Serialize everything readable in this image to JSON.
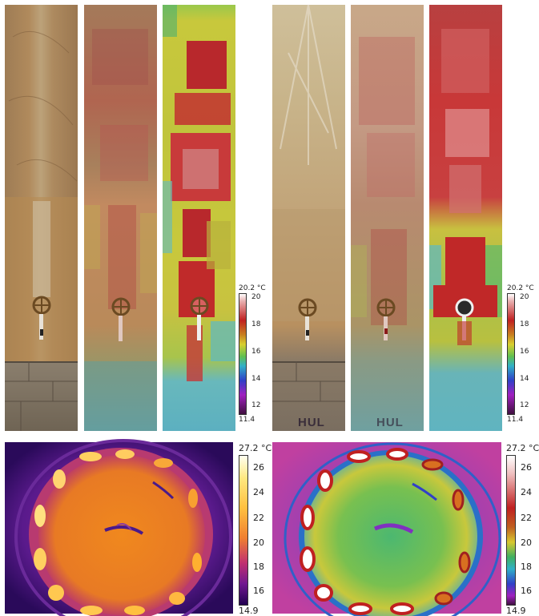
{
  "top_left_scale": {
    "max": "20.2 °C",
    "min": "11.4",
    "ticks": [
      "20",
      "18",
      "16",
      "14",
      "12"
    ]
  },
  "top_right_scale": {
    "max": "20.2 °C",
    "min": "11.4",
    "ticks": [
      "20",
      "18",
      "16",
      "14",
      "12"
    ]
  },
  "bottom_left_scale": {
    "max": "27.2 °C",
    "min": "14.9",
    "ticks": [
      "26",
      "24",
      "22",
      "20",
      "18",
      "16"
    ]
  },
  "bottom_right_scale": {
    "max": "27.2 °C",
    "min": "14.9",
    "ticks": [
      "26",
      "24",
      "22",
      "20",
      "18",
      "16"
    ]
  },
  "wall_text": "HUL",
  "colors": {
    "wood": "#b89a6e",
    "hot_red": "#b8282c",
    "warm_yellow": "#c8c63c",
    "cool_cyan": "#5cb9c4",
    "iron_orange": "#f39a3a",
    "iron_purple": "#5a1a8c"
  }
}
